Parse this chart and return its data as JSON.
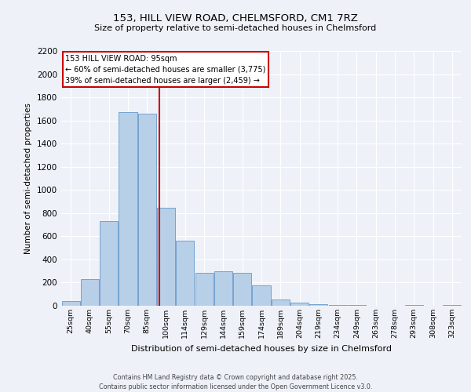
{
  "title_line1": "153, HILL VIEW ROAD, CHELMSFORD, CM1 7RZ",
  "title_line2": "Size of property relative to semi-detached houses in Chelmsford",
  "xlabel": "Distribution of semi-detached houses by size in Chelmsford",
  "ylabel": "Number of semi-detached properties",
  "bin_labels": [
    "25sqm",
    "40sqm",
    "55sqm",
    "70sqm",
    "85sqm",
    "100sqm",
    "114sqm",
    "129sqm",
    "144sqm",
    "159sqm",
    "174sqm",
    "189sqm",
    "204sqm",
    "219sqm",
    "234sqm",
    "249sqm",
    "263sqm",
    "278sqm",
    "293sqm",
    "308sqm",
    "323sqm"
  ],
  "bar_values": [
    40,
    230,
    730,
    1675,
    1660,
    845,
    565,
    285,
    300,
    285,
    175,
    55,
    30,
    15,
    10,
    5,
    0,
    0,
    5,
    0,
    5
  ],
  "bar_color": "#b8cfe8",
  "bar_edge_color": "#6699cc",
  "annotation_title": "153 HILL VIEW ROAD: 95sqm",
  "annotation_line2": "← 60% of semi-detached houses are smaller (3,775)",
  "annotation_line3": "39% of semi-detached houses are larger (2,459) →",
  "vline_color": "#cc0000",
  "annotation_box_color": "#cc0000",
  "ylim": [
    0,
    2200
  ],
  "yticks": [
    0,
    200,
    400,
    600,
    800,
    1000,
    1200,
    1400,
    1600,
    1800,
    2000,
    2200
  ],
  "footer_line1": "Contains HM Land Registry data © Crown copyright and database right 2025.",
  "footer_line2": "Contains public sector information licensed under the Open Government Licence v3.0.",
  "bg_color": "#eef2f8",
  "plot_bg_color": "#eef2f8",
  "grid_color": "#ffffff"
}
